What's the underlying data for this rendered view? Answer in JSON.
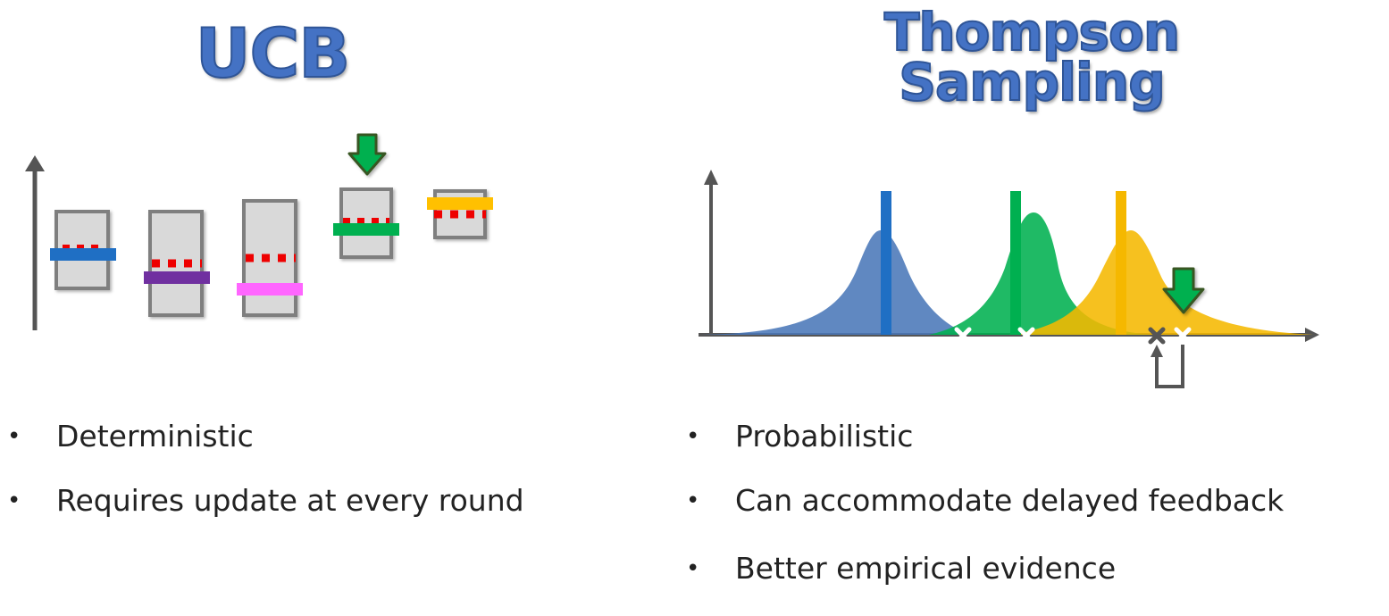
{
  "ucb": {
    "title": "UCB",
    "bullets": [
      "Deterministic",
      "Requires update at every round"
    ],
    "colors": [
      "#1f6fc4",
      "#7030a0",
      "#ff66ff",
      "#00b050",
      "#ffc000"
    ]
  },
  "thompson": {
    "title": "Thompson Sampling",
    "bullets": [
      "Probabilistic",
      "Can accommodate delayed feedback",
      "Better empirical evidence"
    ],
    "colors": [
      "#4a78b8",
      "#00b050",
      "#f5b800"
    ]
  }
}
